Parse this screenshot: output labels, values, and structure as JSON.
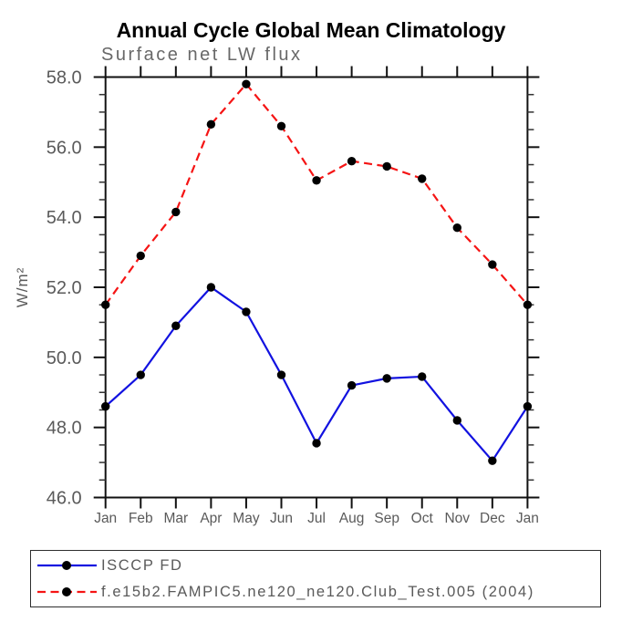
{
  "title": "Annual Cycle Global Mean Climatology",
  "subtitle": "Surface net LW flux",
  "chart_data": {
    "type": "line",
    "title": "Annual Cycle Global Mean Climatology",
    "subtitle": "Surface net LW flux",
    "ylabel": "W/m²",
    "xlabel": "",
    "categories": [
      "Jan",
      "Feb",
      "Mar",
      "Apr",
      "May",
      "Jun",
      "Jul",
      "Aug",
      "Sep",
      "Oct",
      "Nov",
      "Dec",
      "Jan"
    ],
    "ylim": [
      46.0,
      58.0
    ],
    "ytick_major": 2.0,
    "ytick_minor": 0.5,
    "ytick_labels": [
      "46.0",
      "48.0",
      "50.0",
      "52.0",
      "54.0",
      "56.0",
      "58.0"
    ],
    "grid": false,
    "legend_position": "bottom-left-box",
    "marker": {
      "shape": "circle",
      "color": "#000000"
    },
    "series": [
      {
        "name": "ISCCP FD",
        "style": "solid",
        "color": "#1212e0",
        "values": [
          48.6,
          49.5,
          50.9,
          52.0,
          51.3,
          49.5,
          47.55,
          49.2,
          49.4,
          49.45,
          48.2,
          47.05,
          48.6
        ]
      },
      {
        "name": "f.e15b2.FAMPIC5.ne120_ne120.Club_Test.005 (2004)",
        "style": "dashed",
        "color": "#f51414",
        "values": [
          51.5,
          52.9,
          54.15,
          56.65,
          57.8,
          56.6,
          55.05,
          55.6,
          55.45,
          55.1,
          53.7,
          52.65,
          51.5
        ]
      }
    ]
  },
  "colors": {
    "axis": "#111111",
    "tick_minor": "#333333",
    "label_gray": "#5a5a5a",
    "title_black": "#000000"
  }
}
